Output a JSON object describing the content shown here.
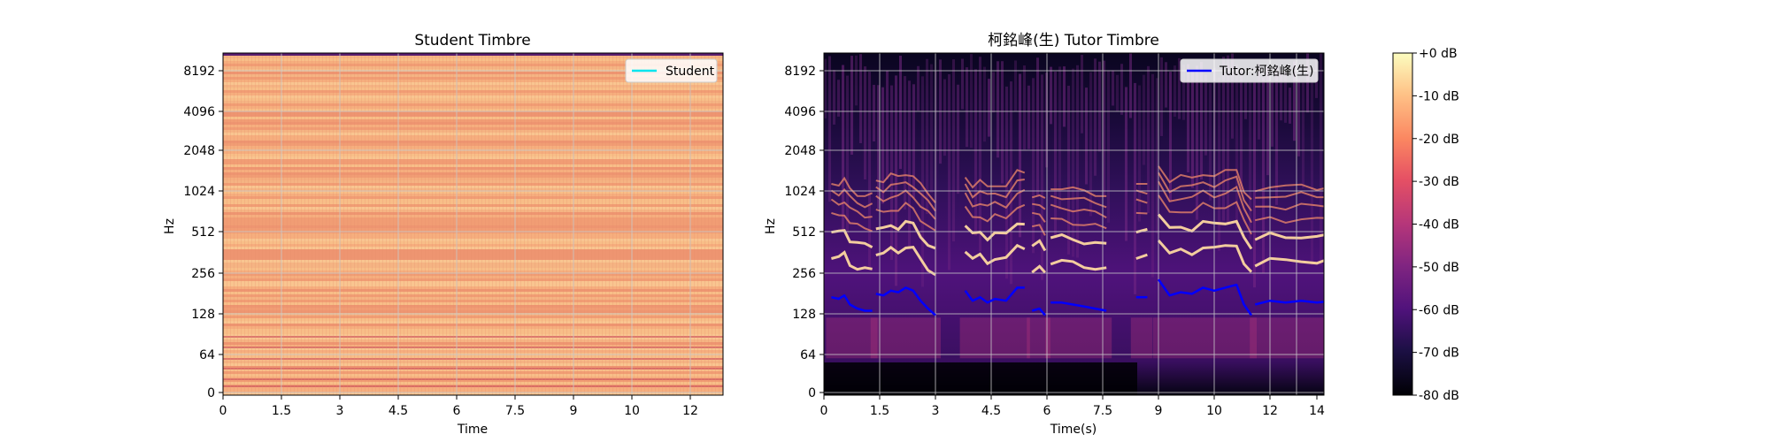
{
  "chart_data": [
    {
      "type": "heatmap",
      "title": "Student Timbre",
      "xlabel": "Time",
      "ylabel": "Hz",
      "x_ticks": [
        "0",
        "1.5",
        "3",
        "4.5",
        "6",
        "7.5",
        "9",
        "10",
        "12"
      ],
      "y_ticks": [
        "0",
        "64",
        "128",
        "256",
        "512",
        "1024",
        "2048",
        "4096",
        "8192"
      ],
      "y_scale": "log",
      "grid": true,
      "legend": {
        "position": "top-right",
        "entries": [
          {
            "name": "Student",
            "color": "#00e5ee"
          }
        ]
      },
      "series": [
        {
          "name": "Student",
          "values": []
        }
      ]
    },
    {
      "type": "heatmap",
      "title": "柯銘峰(生) Tutor Timbre",
      "xlabel": "Time(s)",
      "ylabel": "Hz",
      "x_ticks": [
        "0",
        "1.5",
        "3",
        "4.5",
        "6",
        "7.5",
        "9",
        "10",
        "12",
        "14"
      ],
      "y_ticks": [
        "0",
        "64",
        "128",
        "256",
        "512",
        "1024",
        "2048",
        "4096",
        "8192"
      ],
      "y_scale": "log",
      "grid": true,
      "legend": {
        "position": "top-right",
        "entries": [
          {
            "name": "Tutor:柯銘峰(生)",
            "color": "#0000ff"
          }
        ]
      },
      "series": [
        {
          "name": "Tutor:柯銘峰(生)",
          "segments": [
            {
              "x": [
                0.2,
                0.4,
                0.55,
                0.7,
                0.9,
                1.1,
                1.3
              ],
              "y": [
                170,
                165,
                175,
                150,
                140,
                135,
                135
              ]
            },
            {
              "x": [
                1.4,
                1.6,
                1.8,
                2.0,
                2.2,
                2.4,
                2.6,
                2.8,
                3.0
              ],
              "y": [
                180,
                175,
                190,
                185,
                200,
                190,
                160,
                140,
                125
              ]
            },
            {
              "x": [
                3.8,
                4.0,
                4.2,
                4.4,
                4.6,
                4.9,
                5.2,
                5.4
              ],
              "y": [
                190,
                160,
                170,
                155,
                165,
                160,
                200,
                200
              ]
            },
            {
              "x": [
                5.6,
                5.8,
                5.95
              ],
              "y": [
                135,
                140,
                125
              ]
            },
            {
              "x": [
                6.1,
                6.4,
                6.7,
                7.0,
                7.3,
                7.6
              ],
              "y": [
                155,
                155,
                150,
                145,
                140,
                135
              ]
            },
            {
              "x": [
                8.4,
                8.7
              ],
              "y": [
                170,
                170
              ]
            },
            {
              "x": [
                9.0,
                9.3,
                9.6,
                9.9,
                10.2,
                10.5,
                10.8,
                11.1,
                11.3,
                11.5
              ],
              "y": [
                230,
                175,
                185,
                180,
                200,
                190,
                200,
                210,
                150,
                125
              ]
            },
            {
              "x": [
                11.6,
                12.0,
                12.5,
                13.0,
                13.5,
                14.0,
                14.3
              ],
              "y": [
                150,
                160,
                155,
                160,
                155,
                160,
                160
              ]
            }
          ]
        }
      ]
    }
  ],
  "colorbar": {
    "ticks": [
      "+0 dB",
      "-10 dB",
      "-20 dB",
      "-30 dB",
      "-40 dB",
      "-50 dB",
      "-60 dB",
      "-70 dB",
      "-80 dB"
    ],
    "range_db": [
      -80,
      0
    ],
    "colormap": "magma"
  }
}
